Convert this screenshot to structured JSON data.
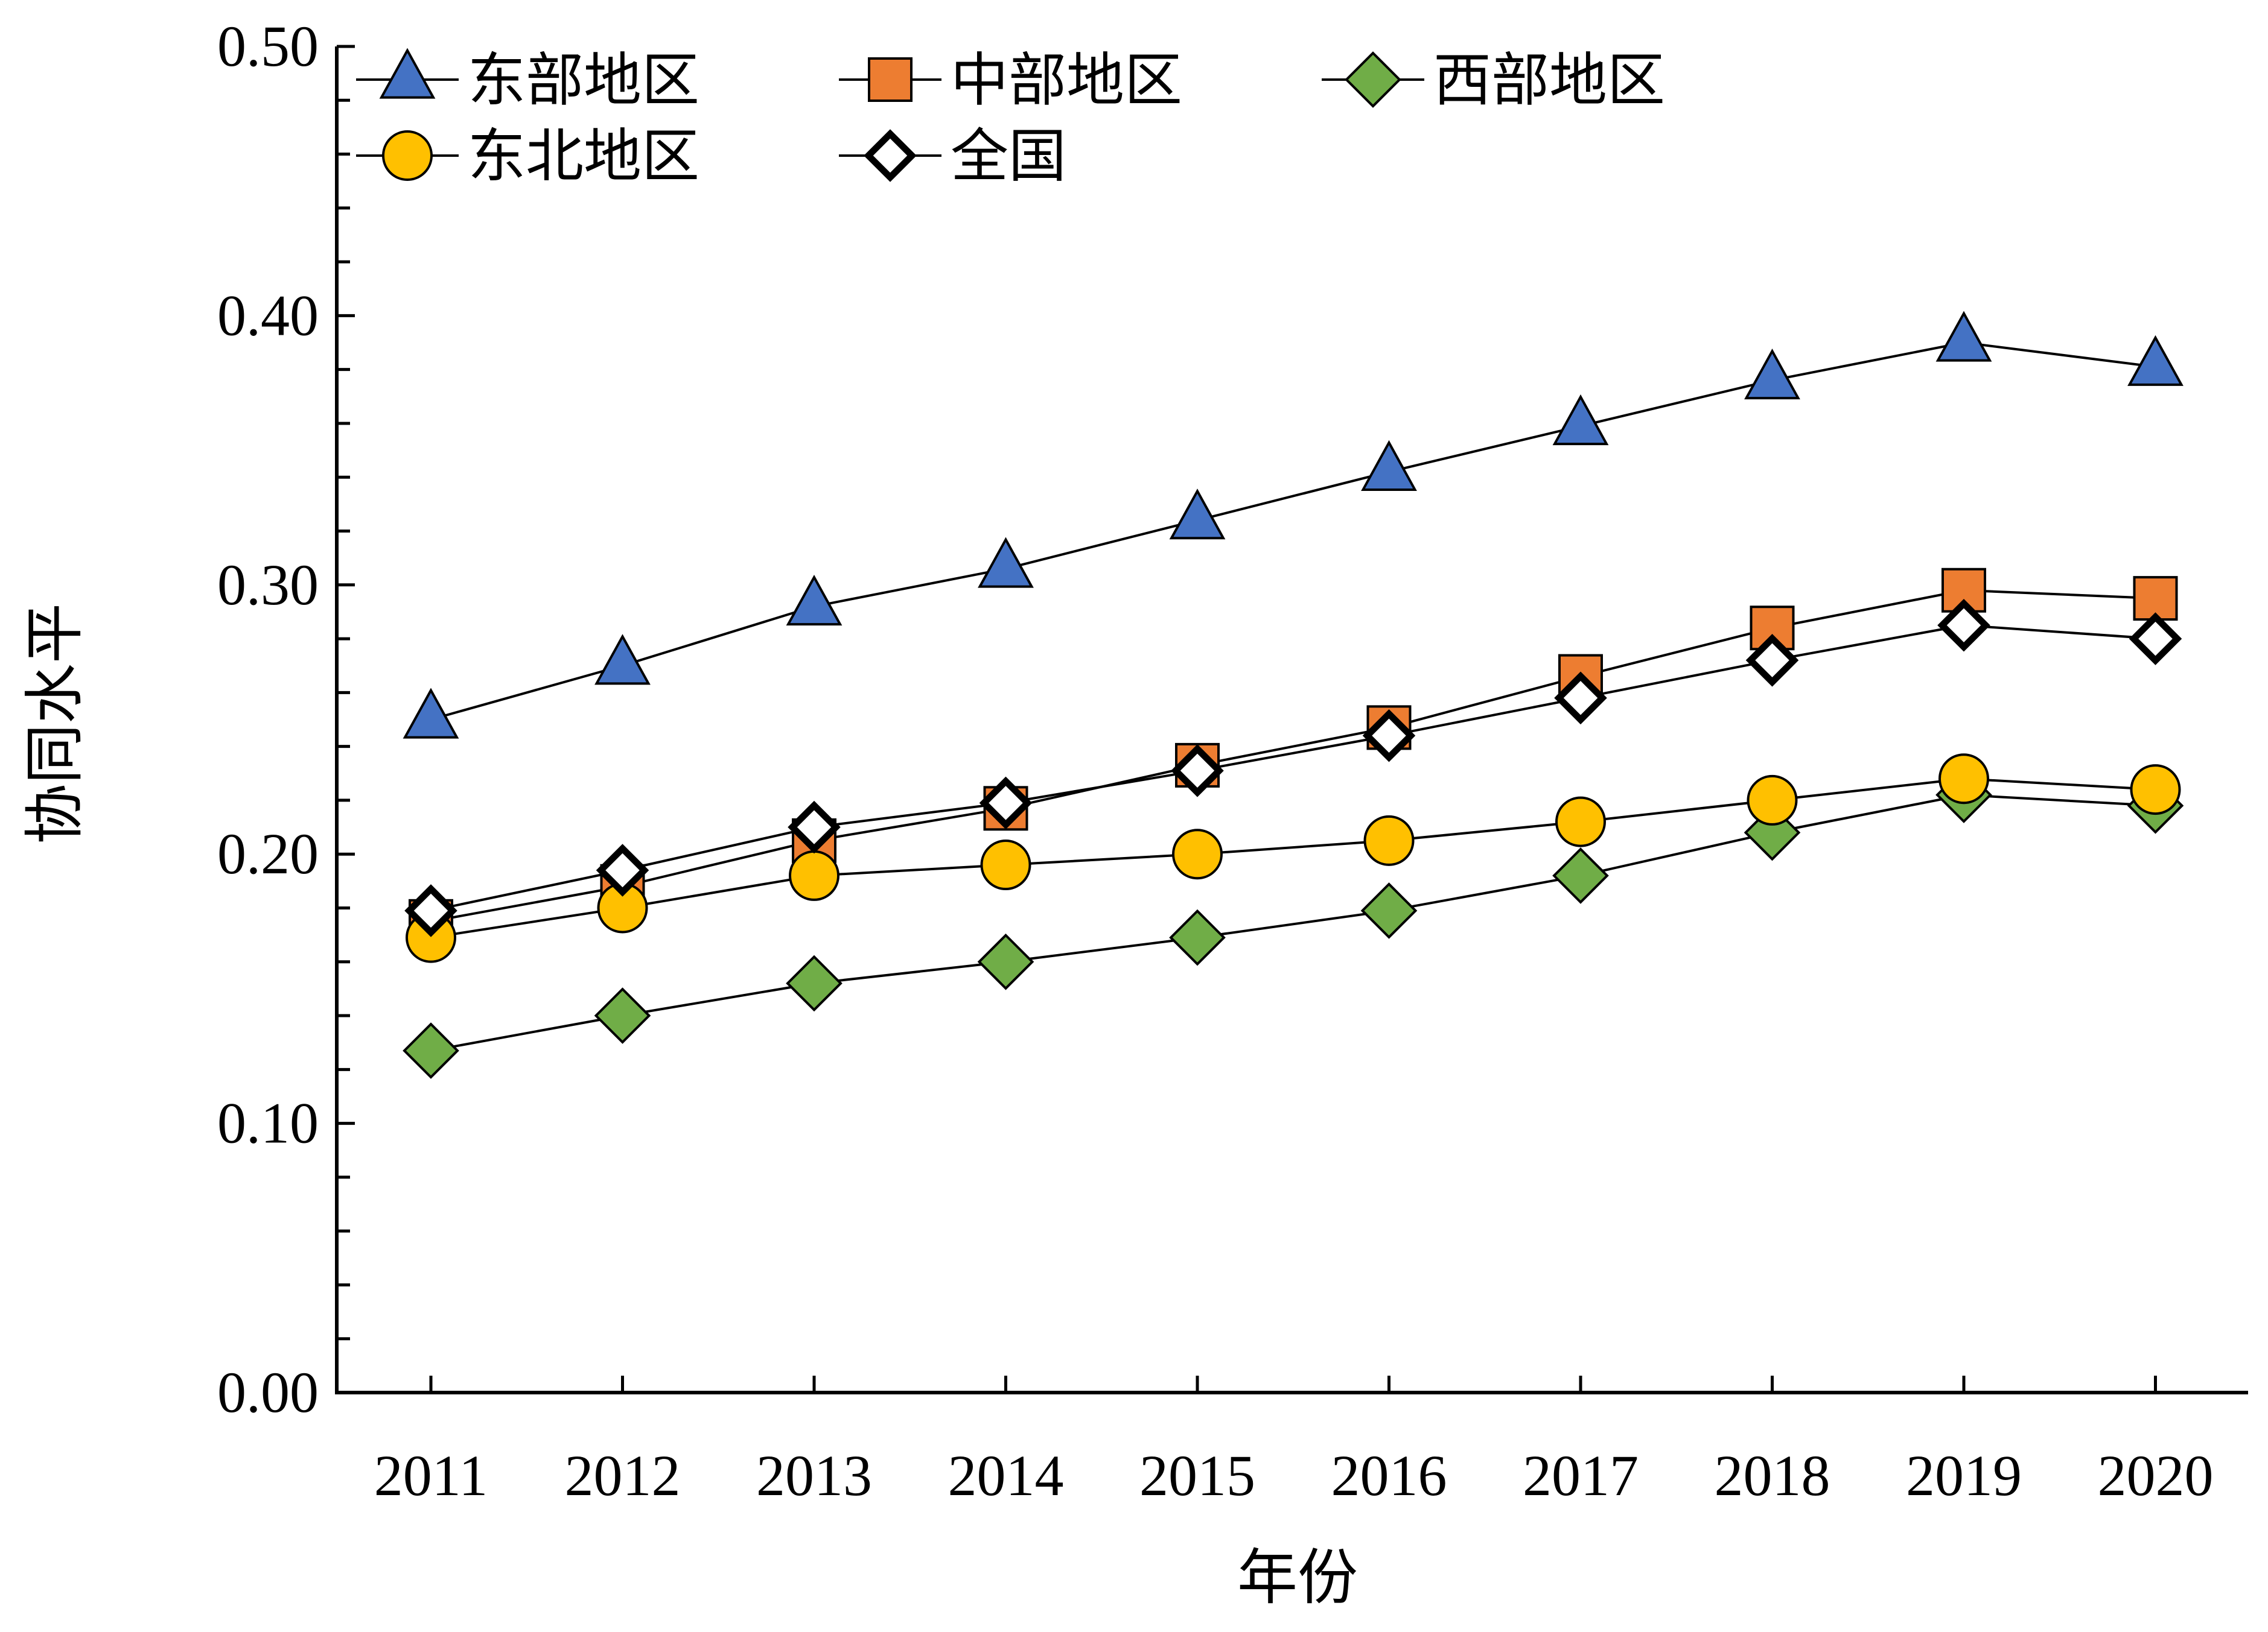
{
  "chart_data": {
    "type": "line",
    "xlabel": "年份",
    "ylabel": "协同水平",
    "ylim": [
      0,
      0.5
    ],
    "yticks": [
      "0.00",
      "0.10",
      "0.20",
      "0.30",
      "0.40",
      "0.50"
    ],
    "categories": [
      "2011",
      "2012",
      "2013",
      "2014",
      "2015",
      "2016",
      "2017",
      "2018",
      "2019",
      "2020"
    ],
    "grid": false,
    "legend_position": "top-left",
    "series": [
      {
        "name": "东部地区",
        "marker": "triangle",
        "color": "#4472C4",
        "values": [
          0.25,
          0.27,
          0.292,
          0.306,
          0.324,
          0.342,
          0.359,
          0.376,
          0.39,
          0.381
        ]
      },
      {
        "name": "中部地区",
        "marker": "square",
        "color": "#ED7D31",
        "values": [
          0.175,
          0.188,
          0.205,
          0.217,
          0.233,
          0.247,
          0.266,
          0.284,
          0.298,
          0.295
        ]
      },
      {
        "name": "西部地区",
        "marker": "diamond",
        "color": "#70AD47",
        "values": [
          0.127,
          0.14,
          0.152,
          0.16,
          0.169,
          0.179,
          0.192,
          0.208,
          0.222,
          0.218
        ]
      },
      {
        "name": "东北地区",
        "marker": "circle",
        "color": "#FFC000",
        "values": [
          0.169,
          0.18,
          0.192,
          0.196,
          0.2,
          0.205,
          0.212,
          0.22,
          0.228,
          0.224
        ]
      },
      {
        "name": "全国",
        "marker": "diamond-open",
        "color": "#FFFFFF",
        "values": [
          0.179,
          0.194,
          0.21,
          0.219,
          0.231,
          0.244,
          0.258,
          0.272,
          0.285,
          0.28
        ]
      }
    ]
  }
}
